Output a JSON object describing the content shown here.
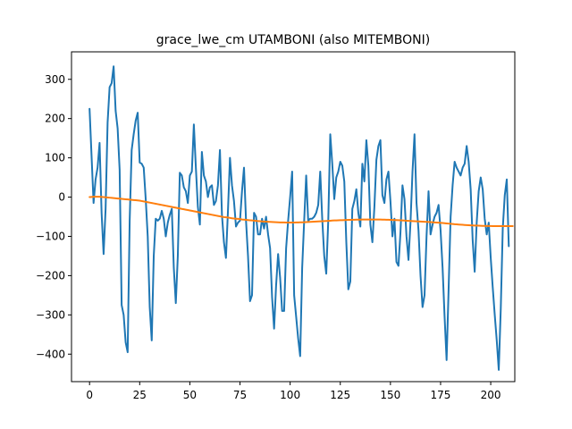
{
  "chart_data": {
    "type": "line",
    "title": "grace_lwe_cm UTAMBONI (also MITEMBONI)",
    "xlabel": "",
    "ylabel": "",
    "xlim": [
      -9,
      212
    ],
    "ylim": [
      -470,
      370
    ],
    "xticks": [
      0,
      25,
      50,
      75,
      100,
      125,
      150,
      175,
      200
    ],
    "yticks": [
      -400,
      -300,
      -200,
      -100,
      0,
      100,
      200,
      300
    ],
    "grid": false,
    "series": [
      {
        "color": "#1f77b4",
        "x_start": 0,
        "x_step": 1,
        "values": [
          225,
          105,
          -15,
          45,
          75,
          138,
          -40,
          -145,
          -30,
          190,
          280,
          290,
          333,
          220,
          175,
          70,
          -275,
          -300,
          -370,
          -395,
          -60,
          120,
          160,
          195,
          215,
          88,
          85,
          75,
          -5,
          -100,
          -280,
          -365,
          -150,
          -55,
          -60,
          -55,
          -35,
          -55,
          -100,
          -65,
          -45,
          -30,
          -180,
          -270,
          -150,
          62,
          55,
          25,
          15,
          -15,
          55,
          65,
          185,
          75,
          -25,
          -70,
          115,
          55,
          40,
          0,
          25,
          30,
          -20,
          -10,
          30,
          120,
          -45,
          -115,
          -155,
          -35,
          100,
          30,
          -10,
          -75,
          -65,
          -60,
          15,
          75,
          -60,
          -150,
          -265,
          -250,
          -40,
          -50,
          -95,
          -95,
          -55,
          -80,
          -50,
          -95,
          -130,
          -255,
          -335,
          -225,
          -145,
          -205,
          -290,
          -290,
          -130,
          -60,
          0,
          65,
          -250,
          -305,
          -360,
          -405,
          -180,
          -60,
          55,
          -60,
          -55,
          -55,
          -50,
          -40,
          -20,
          65,
          -55,
          -150,
          -195,
          -60,
          160,
          85,
          -5,
          50,
          65,
          90,
          80,
          40,
          -115,
          -235,
          -215,
          -30,
          -10,
          20,
          -40,
          -75,
          85,
          40,
          145,
          80,
          -70,
          -115,
          -25,
          95,
          130,
          145,
          5,
          -15,
          45,
          65,
          -10,
          -100,
          -55,
          -165,
          -175,
          -90,
          30,
          -5,
          -100,
          -160,
          -65,
          65,
          160,
          -15,
          -85,
          -200,
          -280,
          -250,
          -100,
          15,
          -95,
          -70,
          -50,
          -40,
          -20,
          -85,
          -180,
          -305,
          -415,
          -235,
          -50,
          30,
          90,
          75,
          65,
          55,
          75,
          85,
          130,
          90,
          20,
          -110,
          -190,
          -65,
          15,
          50,
          20,
          -55,
          -95,
          -65,
          -155,
          -230,
          -300,
          -365,
          -440,
          -285,
          -80,
          5,
          45,
          -125
        ]
      },
      {
        "color": "#ff7f0e",
        "x_start": 0,
        "x_step": 1,
        "values": [
          0,
          0.5,
          1,
          1,
          1,
          1,
          0.5,
          0,
          -0.5,
          -1,
          -1.5,
          -2,
          -2.5,
          -3,
          -3.5,
          -4,
          -4.5,
          -5,
          -5.5,
          -6,
          -6.5,
          -7,
          -7.5,
          -8,
          -8.5,
          -9,
          -10,
          -11,
          -12,
          -13,
          -14,
          -15,
          -16,
          -17,
          -18,
          -19,
          -20,
          -21,
          -22,
          -23,
          -24,
          -25,
          -26,
          -27,
          -28,
          -29,
          -30,
          -31,
          -32,
          -33,
          -34,
          -35,
          -36,
          -37,
          -38,
          -39,
          -40,
          -41,
          -42,
          -43,
          -44,
          -45,
          -46,
          -47,
          -48,
          -49,
          -50,
          -51,
          -51.5,
          -52,
          -53,
          -54,
          -54.5,
          -55,
          -55.5,
          -56,
          -57,
          -57.5,
          -58,
          -58.5,
          -59,
          -59.5,
          -60,
          -60.5,
          -61,
          -61.5,
          -62,
          -62.3,
          -62.6,
          -62.9,
          -63.2,
          -63.5,
          -63.8,
          -64,
          -64.2,
          -64.4,
          -64.5,
          -64.6,
          -64.7,
          -64.8,
          -64.8,
          -64.8,
          -64.7,
          -64.6,
          -64.5,
          -64.3,
          -64.1,
          -63.9,
          -63.7,
          -63.4,
          -63.1,
          -62.8,
          -62.5,
          -62.2,
          -61.9,
          -61.6,
          -61.3,
          -61,
          -60.7,
          -60.4,
          -60.1,
          -59.8,
          -59.5,
          -59.3,
          -59.1,
          -58.9,
          -58.7,
          -58.5,
          -58.3,
          -58.1,
          -57.9,
          -57.7,
          -57.6,
          -57.5,
          -57.4,
          -57.3,
          -57.2,
          -57.1,
          -57,
          -57,
          -57,
          -57,
          -57,
          -57,
          -57.1,
          -57.2,
          -57.3,
          -57.4,
          -57.6,
          -57.8,
          -58,
          -58.2,
          -58.4,
          -58.6,
          -58.9,
          -59.2,
          -59.5,
          -59.8,
          -60.1,
          -60.4,
          -60.7,
          -61,
          -61.3,
          -61.6,
          -61.9,
          -62.2,
          -62.5,
          -62.8,
          -63.1,
          -63.4,
          -63.7,
          -64,
          -64.4,
          -64.8,
          -65.2,
          -65.6,
          -66,
          -66.5,
          -67,
          -67.5,
          -68,
          -68.5,
          -69,
          -69.4,
          -69.8,
          -70.2,
          -70.6,
          -71,
          -71.3,
          -71.6,
          -71.9,
          -72.2,
          -72.4,
          -72.6,
          -72.8,
          -73,
          -73.2,
          -73.4,
          -73.5,
          -73.6,
          -73.7,
          -73.8,
          -73.9,
          -74,
          -74,
          -74,
          -74,
          -74,
          -74,
          -74,
          -74,
          -74
        ]
      }
    ]
  }
}
